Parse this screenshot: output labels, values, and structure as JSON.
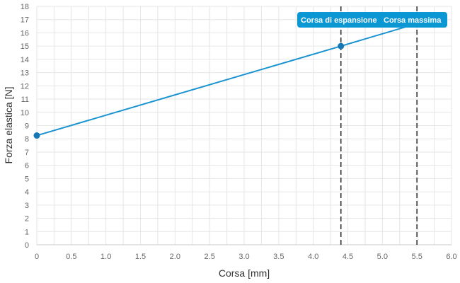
{
  "chart_data": {
    "type": "line",
    "xlabel": "Corsa [mm]",
    "ylabel": "Forza elastica [N]",
    "xlim": [
      0,
      6
    ],
    "ylim": [
      0,
      18
    ],
    "x_ticks": [
      "0",
      "0.5",
      "1.0",
      "1.5",
      "2.0",
      "2.5",
      "3.0",
      "3.5",
      "4.0",
      "4.5",
      "5.0",
      "5.5",
      "6.0"
    ],
    "y_ticks": [
      "0",
      "1",
      "2",
      "3",
      "4",
      "5",
      "6",
      "7",
      "8",
      "9",
      "10",
      "11",
      "12",
      "13",
      "14",
      "15",
      "16",
      "17",
      "18"
    ],
    "grid": true,
    "series": [
      {
        "color": "#1a93d1",
        "points": [
          {
            "x": 0,
            "y": 8.25
          },
          {
            "x": 4.4,
            "y": 15
          },
          {
            "x": 5.5,
            "y": 16.7
          }
        ],
        "markers": [
          {
            "x": 0,
            "y": 8.25
          },
          {
            "x": 4.4,
            "y": 15
          }
        ]
      }
    ],
    "annotations": [
      {
        "x": 4.4,
        "label": "Corsa di espansione",
        "style": "dashed",
        "color": "#333333"
      },
      {
        "x": 5.5,
        "label": "Corsa massima",
        "style": "dashed",
        "color": "#333333"
      }
    ],
    "badge_color": "#0b97d4"
  }
}
